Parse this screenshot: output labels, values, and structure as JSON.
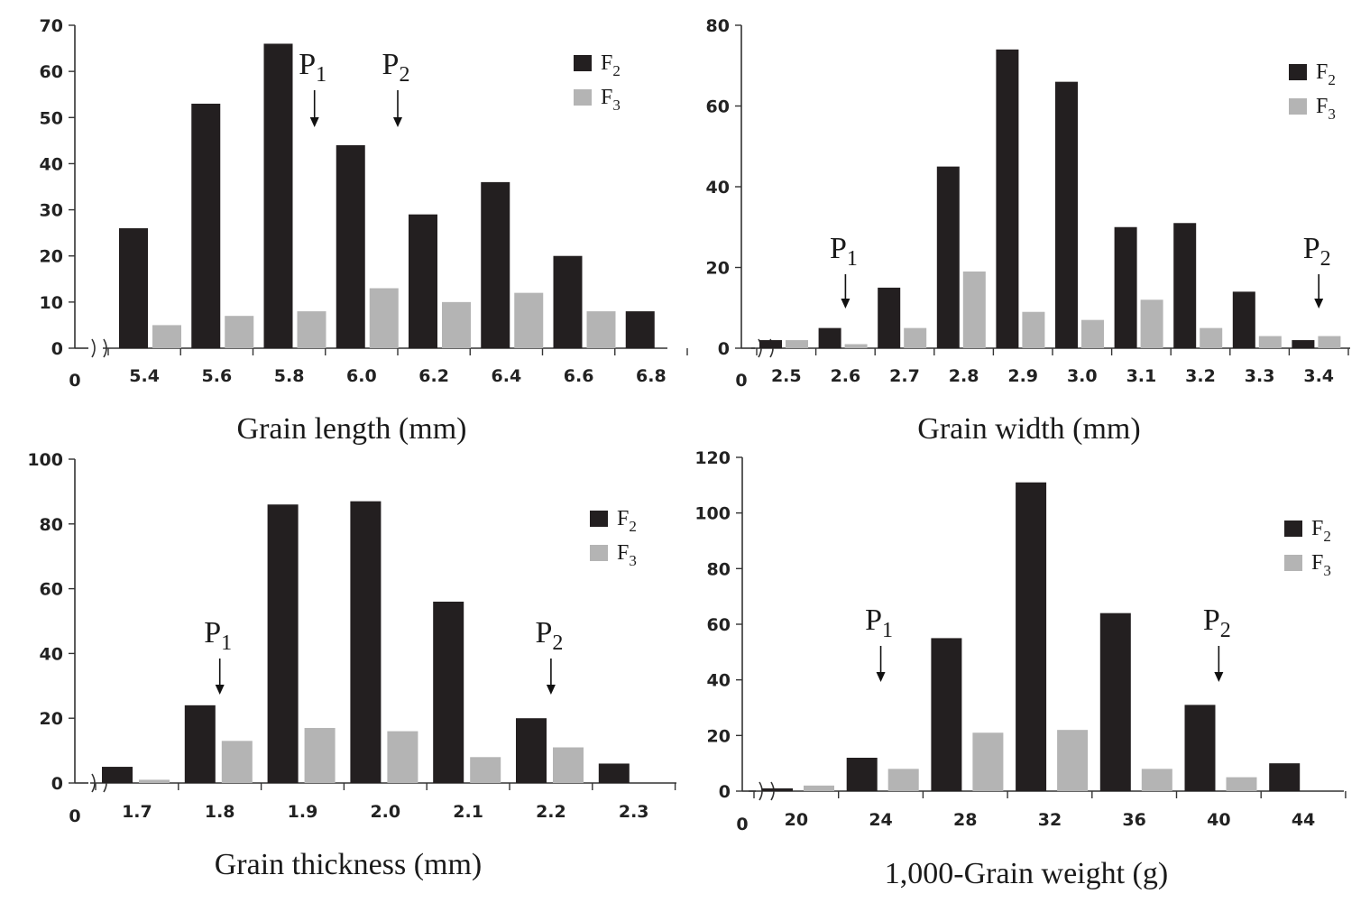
{
  "colors": {
    "F2": "#231f20",
    "F3": "#b4b4b4",
    "axis": "#333333"
  },
  "chart_data": [
    {
      "type": "bar",
      "xlabel": "Grain length (mm)",
      "categories": [
        "5.4",
        "5.6",
        "5.8",
        "6.0",
        "6.2",
        "6.4",
        "6.6",
        "6.8"
      ],
      "origin_label": "0",
      "yticks": [
        "0",
        "10",
        "20",
        "30",
        "40",
        "50",
        "60",
        "70"
      ],
      "ylim": [
        0,
        70
      ],
      "series": [
        {
          "name": "F2",
          "values": [
            26,
            53,
            66,
            44,
            29,
            36,
            20,
            8
          ]
        },
        {
          "name": "F3",
          "values": [
            5,
            7,
            8,
            13,
            10,
            12,
            8,
            null
          ]
        }
      ],
      "legend": {
        "position": "top-right",
        "F2": {
          "main": "F",
          "sub": "2"
        },
        "F3": {
          "main": "F",
          "sub": "3"
        }
      },
      "parents": [
        {
          "main": "P",
          "sub": "1",
          "x": 5.87
        },
        {
          "main": "P",
          "sub": "2",
          "x": 6.1
        }
      ]
    },
    {
      "type": "bar",
      "xlabel": "Grain width (mm)",
      "categories": [
        "2.5",
        "2.6",
        "2.7",
        "2.8",
        "2.9",
        "3.0",
        "3.1",
        "3.2",
        "3.3",
        "3.4"
      ],
      "origin_label": "0",
      "yticks": [
        "0",
        "20",
        "40",
        "60",
        "80"
      ],
      "ylim": [
        0,
        80
      ],
      "series": [
        {
          "name": "F2",
          "values": [
            2,
            5,
            15,
            45,
            74,
            66,
            30,
            31,
            14,
            2
          ]
        },
        {
          "name": "F3",
          "values": [
            2,
            1,
            5,
            19,
            9,
            7,
            12,
            5,
            3,
            3
          ]
        }
      ],
      "legend": {
        "position": "top-right",
        "F2": {
          "main": "F",
          "sub": "2"
        },
        "F3": {
          "main": "F",
          "sub": "3"
        }
      },
      "parents": [
        {
          "main": "P",
          "sub": "1",
          "x": 2.6
        },
        {
          "main": "P",
          "sub": "2",
          "x": 3.4
        }
      ]
    },
    {
      "type": "bar",
      "xlabel": "Grain thickness (mm)",
      "categories": [
        "1.7",
        "1.8",
        "1.9",
        "2.0",
        "2.1",
        "2.2",
        "2.3"
      ],
      "origin_label": "0",
      "yticks": [
        "0",
        "20",
        "40",
        "60",
        "80",
        "100"
      ],
      "ylim": [
        0,
        100
      ],
      "series": [
        {
          "name": "F2",
          "values": [
            5,
            24,
            86,
            87,
            56,
            20,
            6
          ]
        },
        {
          "name": "F3",
          "values": [
            1,
            13,
            17,
            16,
            8,
            11,
            null
          ]
        }
      ],
      "legend": {
        "position": "top-right",
        "F2": {
          "main": "F",
          "sub": "2"
        },
        "F3": {
          "main": "F",
          "sub": "3"
        }
      },
      "parents": [
        {
          "main": "P",
          "sub": "1",
          "x": 1.8
        },
        {
          "main": "P",
          "sub": "2",
          "x": 2.2
        }
      ]
    },
    {
      "type": "bar",
      "xlabel": "1,000-Grain weight (g)",
      "categories": [
        "20",
        "24",
        "28",
        "32",
        "36",
        "40",
        "44"
      ],
      "origin_label": "0",
      "yticks": [
        "0",
        "20",
        "40",
        "60",
        "80",
        "100",
        "120"
      ],
      "ylim": [
        0,
        120
      ],
      "series": [
        {
          "name": "F2",
          "values": [
            1,
            12,
            55,
            111,
            64,
            31,
            10
          ]
        },
        {
          "name": "F3",
          "values": [
            2,
            8,
            21,
            22,
            8,
            5,
            null
          ]
        }
      ],
      "legend": {
        "position": "top-right",
        "F2": {
          "main": "F",
          "sub": "2"
        },
        "F3": {
          "main": "F",
          "sub": "3"
        }
      },
      "parents": [
        {
          "main": "P",
          "sub": "1",
          "x": 24
        },
        {
          "main": "P",
          "sub": "2",
          "x": 40
        }
      ]
    }
  ]
}
